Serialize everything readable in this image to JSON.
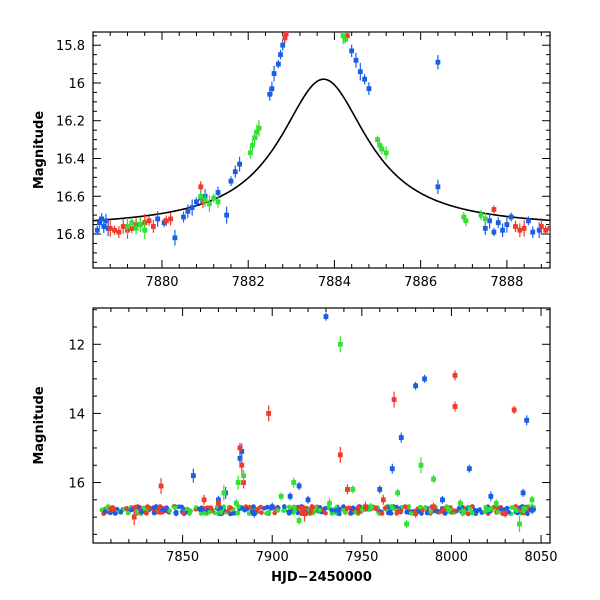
{
  "chart_data": [
    {
      "type": "scatter",
      "panel": "top",
      "title": "",
      "xlabel": "",
      "ylabel": "Magnitude",
      "xlim": [
        7878.4,
        7889.0
      ],
      "ylim": [
        16.98,
        15.73
      ],
      "y_inverted": true,
      "xticks": [
        7880,
        7882,
        7884,
        7886,
        7888
      ],
      "yticks": [
        15.8,
        16,
        16.2,
        16.4,
        16.6,
        16.8
      ],
      "ytick_labels": [
        "15.8",
        "16",
        "16.2",
        "16.4",
        "16.6",
        "16.8"
      ],
      "grid": false,
      "legend": "none",
      "colors": {
        "blue": "#1a5ee8",
        "red": "#f03a2a",
        "green": "#33e033",
        "model": "#000000"
      },
      "model_curve": {
        "name": "",
        "description": "single-lens microlensing fit",
        "peak_x": 7883.75,
        "peak_mag": 15.98,
        "baseline_mag": 16.77
      },
      "series": [
        {
          "color": "blue",
          "points": [
            [
              7878.5,
              16.78
            ],
            [
              7878.55,
              16.74
            ],
            [
              7878.6,
              16.72
            ],
            [
              7878.65,
              16.76
            ],
            [
              7878.7,
              16.73
            ],
            [
              7878.75,
              16.77
            ],
            [
              7879.5,
              16.75
            ],
            [
              7879.9,
              16.72
            ],
            [
              7880.05,
              16.74
            ],
            [
              7880.3,
              16.82
            ],
            [
              7880.5,
              16.71
            ],
            [
              7880.6,
              16.68
            ],
            [
              7880.7,
              16.66
            ],
            [
              7880.8,
              16.63
            ],
            [
              7880.9,
              16.61
            ],
            [
              7881.0,
              16.6
            ],
            [
              7881.3,
              16.58
            ],
            [
              7881.5,
              16.7
            ],
            [
              7881.6,
              16.52
            ],
            [
              7881.7,
              16.47
            ],
            [
              7881.8,
              16.43
            ],
            [
              7882.5,
              16.06
            ],
            [
              7882.55,
              16.03
            ],
            [
              7882.6,
              15.95
            ],
            [
              7882.7,
              15.9
            ],
            [
              7882.75,
              15.85
            ],
            [
              7882.8,
              15.8
            ],
            [
              7882.85,
              15.76
            ],
            [
              7884.4,
              15.83
            ],
            [
              7884.5,
              15.88
            ],
            [
              7884.6,
              15.94
            ],
            [
              7884.7,
              15.98
            ],
            [
              7884.8,
              16.03
            ],
            [
              7886.4,
              15.89
            ],
            [
              7886.4,
              16.55
            ],
            [
              7887.5,
              16.77
            ],
            [
              7887.6,
              16.73
            ],
            [
              7887.7,
              16.79
            ],
            [
              7887.8,
              16.74
            ],
            [
              7887.9,
              16.78
            ],
            [
              7888.0,
              16.75
            ],
            [
              7888.1,
              16.71
            ],
            [
              7888.5,
              16.73
            ],
            [
              7888.6,
              16.79
            ],
            [
              7888.75,
              16.78
            ]
          ]
        },
        {
          "color": "red",
          "points": [
            [
              7878.8,
              16.77
            ],
            [
              7878.9,
              16.78
            ],
            [
              7879.0,
              16.79
            ],
            [
              7879.1,
              16.76
            ],
            [
              7879.2,
              16.78
            ],
            [
              7879.3,
              16.77
            ],
            [
              7879.4,
              16.75
            ],
            [
              7879.6,
              16.74
            ],
            [
              7879.7,
              16.73
            ],
            [
              7879.8,
              16.76
            ],
            [
              7880.1,
              16.73
            ],
            [
              7880.2,
              16.72
            ],
            [
              7880.9,
              16.55
            ],
            [
              7880.95,
              16.63
            ],
            [
              7882.85,
              15.76
            ],
            [
              7882.88,
              15.74
            ],
            [
              7884.3,
              15.75
            ],
            [
              7887.7,
              16.67
            ],
            [
              7888.2,
              16.76
            ],
            [
              7888.3,
              16.78
            ],
            [
              7888.4,
              16.77
            ],
            [
              7888.8,
              16.76
            ],
            [
              7888.9,
              16.78
            ],
            [
              7889.0,
              16.77
            ]
          ]
        },
        {
          "color": "green",
          "points": [
            [
              7879.2,
              16.76
            ],
            [
              7879.3,
              16.74
            ],
            [
              7879.4,
              16.77
            ],
            [
              7879.5,
              16.75
            ],
            [
              7879.6,
              16.78
            ],
            [
              7880.9,
              16.6
            ],
            [
              7881.0,
              16.62
            ],
            [
              7881.1,
              16.64
            ],
            [
              7881.2,
              16.61
            ],
            [
              7881.3,
              16.63
            ],
            [
              7882.05,
              16.37
            ],
            [
              7882.1,
              16.33
            ],
            [
              7882.15,
              16.29
            ],
            [
              7882.2,
              16.26
            ],
            [
              7882.25,
              16.24
            ],
            [
              7884.2,
              15.75
            ],
            [
              7884.25,
              15.77
            ],
            [
              7885.0,
              16.3
            ],
            [
              7885.05,
              16.33
            ],
            [
              7885.1,
              16.35
            ],
            [
              7885.2,
              16.37
            ],
            [
              7887.0,
              16.71
            ],
            [
              7887.05,
              16.73
            ],
            [
              7887.4,
              16.7
            ],
            [
              7887.5,
              16.72
            ]
          ]
        }
      ]
    },
    {
      "type": "scatter",
      "panel": "bottom",
      "title": "",
      "xlabel": "HJD−2450000",
      "ylabel": "Magnitude",
      "xlim": [
        7800,
        8055
      ],
      "ylim": [
        17.75,
        10.95
      ],
      "y_inverted": true,
      "xticks": [
        7850,
        7900,
        7950,
        8000,
        8050
      ],
      "yticks": [
        12,
        14,
        16
      ],
      "ytick_labels": [
        "12",
        "14",
        "16"
      ],
      "grid": false,
      "legend": "none",
      "baseline_mag": 16.8,
      "series": [
        {
          "color": "blue",
          "points": [
            [
              7856,
              15.8
            ],
            [
              7870,
              16.5
            ],
            [
              7874,
              16.3
            ],
            [
              7882,
              15.3
            ],
            [
              7883,
              15.1
            ],
            [
              7890,
              16.9
            ],
            [
              7900,
              16.7
            ],
            [
              7910,
              16.4
            ],
            [
              7915,
              16.1
            ],
            [
              7920,
              16.5
            ],
            [
              7930,
              11.2
            ],
            [
              7937,
              16.8
            ],
            [
              7960,
              16.2
            ],
            [
              7967,
              15.6
            ],
            [
              7972,
              14.7
            ],
            [
              7980,
              13.2
            ],
            [
              7985,
              13.0
            ],
            [
              7995,
              16.5
            ],
            [
              8010,
              15.6
            ],
            [
              8022,
              16.4
            ],
            [
              8040,
              16.3
            ],
            [
              8042,
              14.2
            ],
            [
              8045,
              16.8
            ]
          ]
        },
        {
          "color": "red",
          "points": [
            [
              7823,
              17.0
            ],
            [
              7838,
              16.1
            ],
            [
              7862,
              16.5
            ],
            [
              7870,
              16.6
            ],
            [
              7882,
              15.0
            ],
            [
              7883,
              15.5
            ],
            [
              7884,
              16.0
            ],
            [
              7898,
              14.0
            ],
            [
              7918,
              16.9
            ],
            [
              7938,
              15.2
            ],
            [
              7942,
              16.2
            ],
            [
              7952,
              16.7
            ],
            [
              7962,
              16.5
            ],
            [
              7968,
              13.6
            ],
            [
              7980,
              16.9
            ],
            [
              7990,
              16.7
            ],
            [
              8002,
              12.9
            ],
            [
              8002,
              13.8
            ],
            [
              8030,
              16.9
            ],
            [
              8035,
              13.9
            ]
          ]
        },
        {
          "color": "green",
          "points": [
            [
              7873,
              16.3
            ],
            [
              7880,
              16.6
            ],
            [
              7881,
              16.0
            ],
            [
              7884,
              15.8
            ],
            [
              7905,
              16.4
            ],
            [
              7912,
              16.0
            ],
            [
              7915,
              17.1
            ],
            [
              7932,
              16.6
            ],
            [
              7938,
              12.0
            ],
            [
              7945,
              16.2
            ],
            [
              7955,
              16.7
            ],
            [
              7970,
              16.3
            ],
            [
              7975,
              17.2
            ],
            [
              7983,
              15.5
            ],
            [
              7990,
              15.9
            ],
            [
              8005,
              16.6
            ],
            [
              8025,
              16.6
            ],
            [
              8038,
              17.2
            ],
            [
              8045,
              16.5
            ]
          ]
        }
      ]
    }
  ]
}
